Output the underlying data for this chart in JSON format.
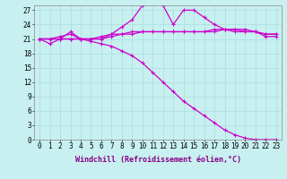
{
  "background_color": "#c8f0f0",
  "grid_color": "#b0e0e0",
  "line_color": "#cc00cc",
  "xlabel": "Windchill (Refroidissement éolien,°C)",
  "xlim": [
    -0.5,
    23.5
  ],
  "ylim": [
    0,
    28
  ],
  "xticks": [
    0,
    1,
    2,
    3,
    4,
    5,
    6,
    7,
    8,
    9,
    10,
    11,
    12,
    13,
    14,
    15,
    16,
    17,
    18,
    19,
    20,
    21,
    22,
    23
  ],
  "yticks": [
    0,
    3,
    6,
    9,
    12,
    15,
    18,
    21,
    24,
    27
  ],
  "series": [
    [
      21.0,
      20.0,
      21.0,
      22.5,
      21.0,
      21.0,
      21.0,
      22.0,
      23.5,
      25.0,
      28.0,
      28.5,
      28.0,
      24.0,
      27.0,
      27.0,
      25.5,
      24.0,
      23.0,
      22.5,
      22.5,
      22.5,
      21.5,
      21.5
    ],
    [
      21.0,
      21.0,
      21.0,
      21.0,
      21.0,
      21.0,
      21.5,
      22.0,
      22.0,
      22.5,
      22.5,
      22.5,
      22.5,
      22.5,
      22.5,
      22.5,
      22.5,
      23.0,
      23.0,
      23.0,
      23.0,
      22.5,
      22.0,
      22.0
    ],
    [
      21.0,
      21.0,
      21.5,
      22.0,
      21.0,
      20.5,
      20.0,
      19.5,
      18.5,
      17.5,
      16.0,
      14.0,
      12.0,
      10.0,
      8.0,
      6.5,
      5.0,
      3.5,
      2.0,
      1.0,
      0.3,
      0.0,
      0.0,
      0.0
    ],
    [
      21.0,
      21.0,
      21.0,
      21.0,
      21.0,
      21.0,
      21.0,
      21.5,
      22.0,
      22.0,
      22.5,
      22.5,
      22.5,
      22.5,
      22.5,
      22.5,
      22.5,
      22.5,
      23.0,
      23.0,
      22.5,
      22.5,
      22.0,
      22.0
    ]
  ],
  "figsize": [
    3.2,
    2.0
  ],
  "dpi": 100,
  "tick_fontsize": 5.5,
  "xlabel_fontsize": 6.0
}
